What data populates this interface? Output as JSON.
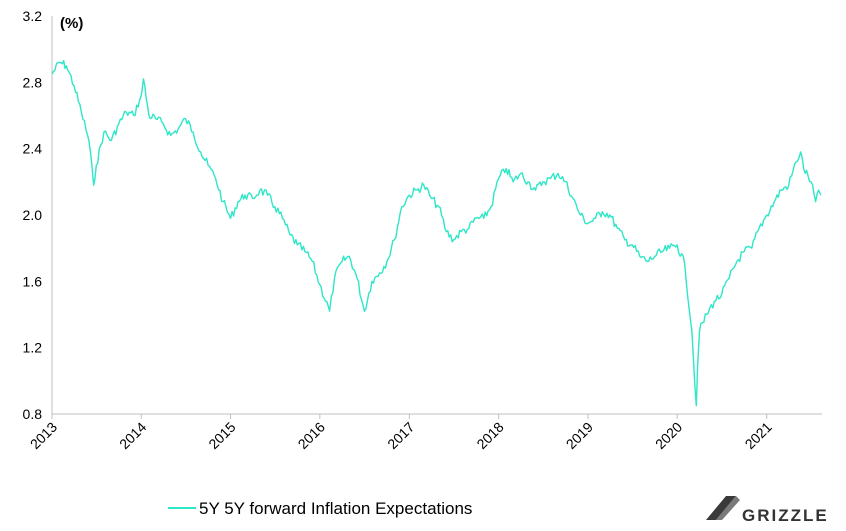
{
  "chart_data": {
    "type": "line",
    "unit_label": "(%)",
    "ylim": [
      0.8,
      3.2
    ],
    "y_ticks": [
      "0.8",
      "1.2",
      "1.6",
      "2.0",
      "2.4",
      "2.8",
      "3.2"
    ],
    "x_ticks": [
      "2013",
      "2014",
      "2015",
      "2016",
      "2017",
      "2018",
      "2019",
      "2020",
      "2021"
    ],
    "xlim": [
      "2013-01-01",
      "2021-08-15"
    ],
    "grid": false,
    "legend_position": "bottom-left",
    "series": [
      {
        "name": "5Y 5Y forward Inflation Expectations",
        "color": "#2ee6c8",
        "points": [
          [
            "2013-01-01",
            2.85
          ],
          [
            "2013-02-01",
            2.92
          ],
          [
            "2013-03-01",
            2.9
          ],
          [
            "2013-04-01",
            2.78
          ],
          [
            "2013-05-01",
            2.62
          ],
          [
            "2013-06-01",
            2.45
          ],
          [
            "2013-06-20",
            2.18
          ],
          [
            "2013-07-01",
            2.3
          ],
          [
            "2013-08-01",
            2.5
          ],
          [
            "2013-09-01",
            2.45
          ],
          [
            "2013-10-01",
            2.55
          ],
          [
            "2013-11-01",
            2.62
          ],
          [
            "2013-12-01",
            2.6
          ],
          [
            "2014-01-01",
            2.72
          ],
          [
            "2014-01-10",
            2.82
          ],
          [
            "2014-02-01",
            2.6
          ],
          [
            "2014-03-01",
            2.58
          ],
          [
            "2014-04-01",
            2.55
          ],
          [
            "2014-05-01",
            2.48
          ],
          [
            "2014-06-01",
            2.52
          ],
          [
            "2014-07-01",
            2.58
          ],
          [
            "2014-08-01",
            2.5
          ],
          [
            "2014-09-01",
            2.38
          ],
          [
            "2014-10-01",
            2.3
          ],
          [
            "2014-11-01",
            2.22
          ],
          [
            "2014-12-01",
            2.08
          ],
          [
            "2015-01-01",
            1.98
          ],
          [
            "2015-02-01",
            2.08
          ],
          [
            "2015-03-01",
            2.12
          ],
          [
            "2015-04-01",
            2.1
          ],
          [
            "2015-05-01",
            2.15
          ],
          [
            "2015-06-01",
            2.12
          ],
          [
            "2015-07-01",
            2.05
          ],
          [
            "2015-08-01",
            1.98
          ],
          [
            "2015-09-01",
            1.88
          ],
          [
            "2015-10-01",
            1.82
          ],
          [
            "2015-11-01",
            1.78
          ],
          [
            "2015-12-01",
            1.72
          ],
          [
            "2016-01-01",
            1.58
          ],
          [
            "2016-02-10",
            1.42
          ],
          [
            "2016-03-01",
            1.62
          ],
          [
            "2016-04-01",
            1.72
          ],
          [
            "2016-05-01",
            1.75
          ],
          [
            "2016-06-01",
            1.62
          ],
          [
            "2016-07-01",
            1.42
          ],
          [
            "2016-08-01",
            1.6
          ],
          [
            "2016-09-01",
            1.65
          ],
          [
            "2016-10-01",
            1.72
          ],
          [
            "2016-11-01",
            1.85
          ],
          [
            "2016-12-01",
            2.05
          ],
          [
            "2017-01-01",
            2.12
          ],
          [
            "2017-02-01",
            2.15
          ],
          [
            "2017-03-01",
            2.18
          ],
          [
            "2017-04-01",
            2.1
          ],
          [
            "2017-05-01",
            2.05
          ],
          [
            "2017-06-01",
            1.9
          ],
          [
            "2017-07-01",
            1.85
          ],
          [
            "2017-08-01",
            1.9
          ],
          [
            "2017-09-01",
            1.92
          ],
          [
            "2017-10-01",
            1.98
          ],
          [
            "2017-11-01",
            1.98
          ],
          [
            "2017-12-01",
            2.05
          ],
          [
            "2018-01-01",
            2.22
          ],
          [
            "2018-02-01",
            2.28
          ],
          [
            "2018-03-01",
            2.2
          ],
          [
            "2018-04-01",
            2.25
          ],
          [
            "2018-05-01",
            2.2
          ],
          [
            "2018-06-01",
            2.15
          ],
          [
            "2018-07-01",
            2.2
          ],
          [
            "2018-08-01",
            2.22
          ],
          [
            "2018-09-01",
            2.25
          ],
          [
            "2018-10-01",
            2.2
          ],
          [
            "2018-11-01",
            2.1
          ],
          [
            "2018-12-01",
            2.0
          ],
          [
            "2019-01-01",
            1.95
          ],
          [
            "2019-02-01",
            1.98
          ],
          [
            "2019-03-01",
            2.02
          ],
          [
            "2019-04-01",
            2.0
          ],
          [
            "2019-05-01",
            1.92
          ],
          [
            "2019-06-01",
            1.85
          ],
          [
            "2019-07-01",
            1.82
          ],
          [
            "2019-08-01",
            1.75
          ],
          [
            "2019-09-01",
            1.72
          ],
          [
            "2019-10-01",
            1.75
          ],
          [
            "2019-11-01",
            1.78
          ],
          [
            "2019-12-01",
            1.8
          ],
          [
            "2020-01-01",
            1.82
          ],
          [
            "2020-02-01",
            1.7
          ],
          [
            "2020-03-01",
            1.3
          ],
          [
            "2020-03-19",
            0.85
          ],
          [
            "2020-03-25",
            1.1
          ],
          [
            "2020-04-01",
            1.3
          ],
          [
            "2020-05-01",
            1.4
          ],
          [
            "2020-06-01",
            1.48
          ],
          [
            "2020-07-01",
            1.52
          ],
          [
            "2020-08-01",
            1.62
          ],
          [
            "2020-09-01",
            1.72
          ],
          [
            "2020-10-01",
            1.78
          ],
          [
            "2020-11-01",
            1.8
          ],
          [
            "2020-12-01",
            1.92
          ],
          [
            "2021-01-01",
            2.0
          ],
          [
            "2021-02-01",
            2.08
          ],
          [
            "2021-03-01",
            2.15
          ],
          [
            "2021-04-01",
            2.18
          ],
          [
            "2021-05-01",
            2.32
          ],
          [
            "2021-05-20",
            2.38
          ],
          [
            "2021-06-01",
            2.28
          ],
          [
            "2021-07-01",
            2.2
          ],
          [
            "2021-07-20",
            2.08
          ],
          [
            "2021-08-01",
            2.15
          ],
          [
            "2021-08-10",
            2.12
          ]
        ]
      }
    ]
  },
  "brand": {
    "name": "GRIZZLE",
    "logo_icon": "grizzle-logo-icon"
  }
}
